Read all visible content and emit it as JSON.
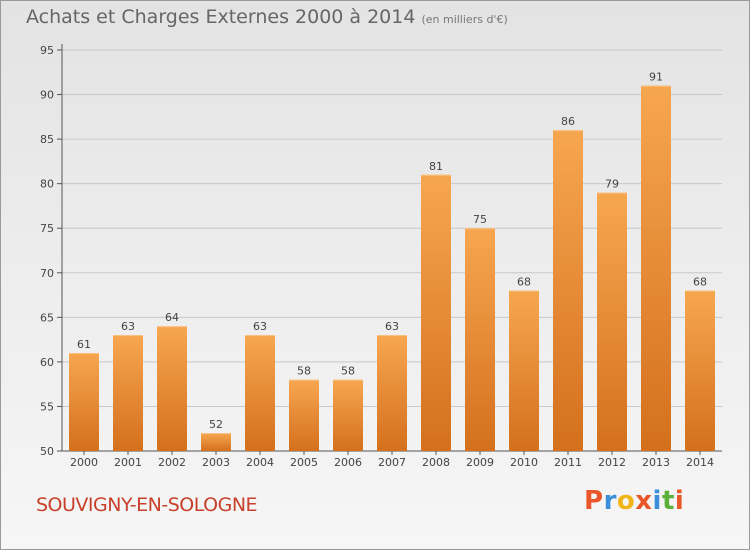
{
  "header": {
    "title": "Achats et Charges Externes 2000 à 2014",
    "unit": "(en milliers d'€)"
  },
  "footer": {
    "commune": "SOUVIGNY-EN-SOLOGNE",
    "logo_text": "Proxiti",
    "logo_colors": [
      "#e8562a",
      "#3a8fd8",
      "#f2b517",
      "#e8562a",
      "#3a8fd8",
      "#5bb03a",
      "#e8562a"
    ]
  },
  "colors": {
    "bar_light": "#f7a650",
    "bar_dark": "#d4701c",
    "grid": "#c8c8c8",
    "axis_text": "#444444"
  },
  "chart_data": {
    "type": "bar",
    "title": "Achats et Charges Externes 2000 à 2014",
    "subtitle": "(en milliers d'€)",
    "xlabel": "",
    "ylabel": "",
    "categories": [
      "2000",
      "2001",
      "2002",
      "2003",
      "2004",
      "2005",
      "2006",
      "2007",
      "2008",
      "2009",
      "2010",
      "2011",
      "2012",
      "2013",
      "2014"
    ],
    "values": [
      61,
      63,
      64,
      52,
      63,
      58,
      58,
      63,
      81,
      75,
      68,
      86,
      79,
      91,
      68
    ],
    "ylim": [
      50,
      95
    ],
    "yticks": [
      50,
      55,
      60,
      65,
      70,
      75,
      80,
      85,
      90,
      95
    ],
    "grid": true,
    "data_labels": true
  }
}
